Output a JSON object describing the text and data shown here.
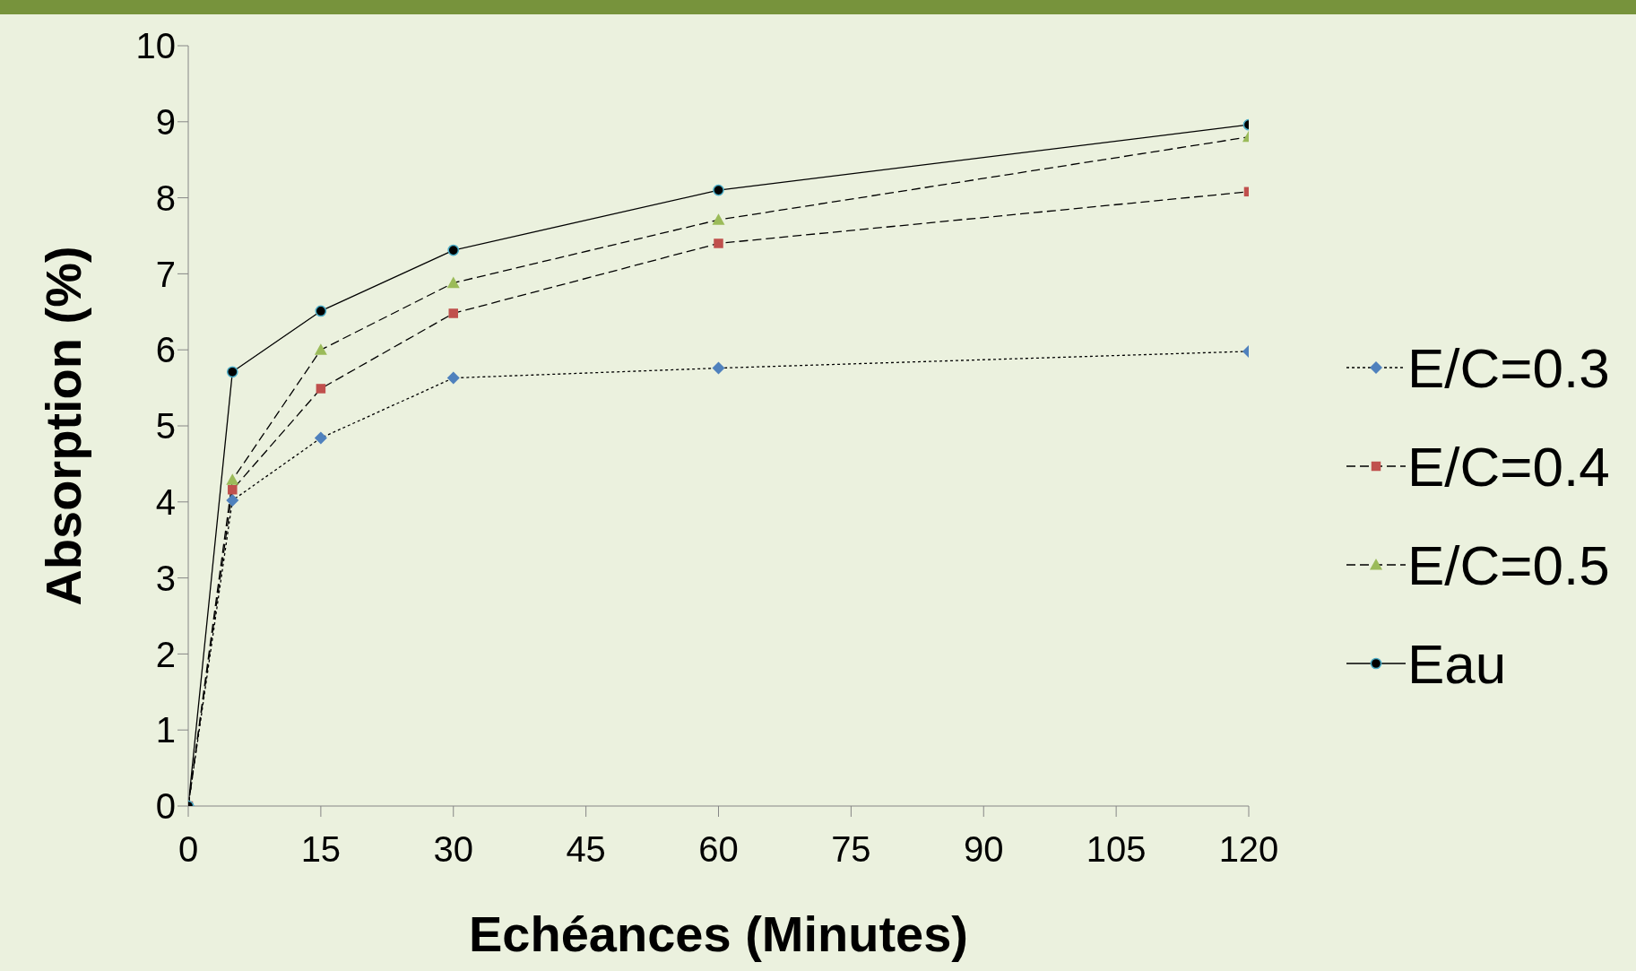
{
  "chart_data": {
    "type": "line",
    "xlabel": "Echéances (Minutes)",
    "ylabel": "Absorption (%)",
    "x": [
      0,
      5,
      15,
      30,
      60,
      120
    ],
    "series": [
      {
        "name": "E/C=0.3",
        "color": "#4f81bd",
        "marker": "diamond",
        "line_style": "dotted",
        "values": [
          0,
          4.02,
          4.84,
          5.63,
          5.76,
          5.98
        ]
      },
      {
        "name": "E/C=0.4",
        "color": "#c0504d",
        "marker": "square",
        "line_style": "dashed",
        "values": [
          0,
          4.16,
          5.49,
          6.48,
          7.4,
          8.08
        ]
      },
      {
        "name": "E/C=0.5",
        "color": "#9bbb59",
        "marker": "triangle",
        "line_style": "dashed",
        "values": [
          0,
          4.29,
          6.0,
          6.88,
          7.71,
          8.8
        ]
      },
      {
        "name": "Eau",
        "color": "#000000",
        "marker": "circle",
        "line_style": "solid",
        "values": [
          0,
          5.71,
          6.51,
          7.31,
          8.1,
          8.96
        ]
      }
    ],
    "xlim": [
      0,
      120
    ],
    "xticks": [
      0,
      15,
      30,
      45,
      60,
      75,
      90,
      105,
      120
    ],
    "ylim": [
      0,
      10
    ],
    "yticks": [
      0,
      1,
      2,
      3,
      4,
      5,
      6,
      7,
      8,
      9,
      10
    ],
    "grid": false,
    "legend": "right"
  }
}
